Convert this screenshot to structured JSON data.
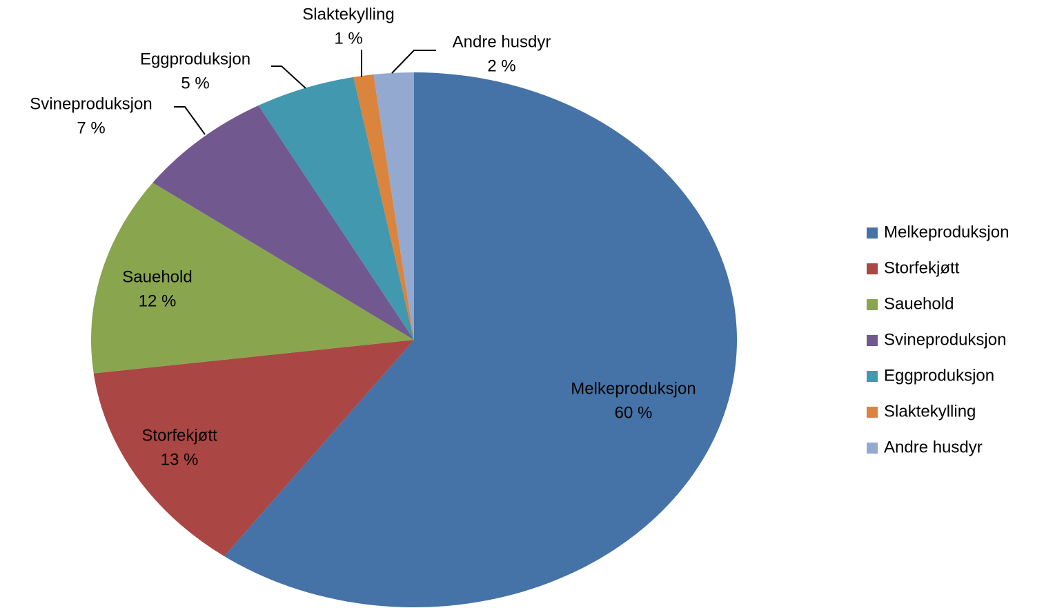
{
  "chart_data": {
    "type": "pie",
    "categories": [
      "Melkeproduksjon",
      "Storfekjøtt",
      "Sauehold",
      "Svineproduksjon",
      "Eggproduksjon",
      "Slaktekylling",
      "Andre husdyr"
    ],
    "values": [
      60,
      13,
      12,
      7,
      5,
      1,
      2
    ],
    "value_labels": [
      "60 %",
      "13 %",
      "12 %",
      "7 %",
      "5 %",
      "1 %",
      "2 %"
    ],
    "colors": [
      "#4572a7",
      "#aa4643",
      "#89a54e",
      "#71588f",
      "#4198af",
      "#db843d",
      "#93a9cf"
    ],
    "legend": "right"
  }
}
